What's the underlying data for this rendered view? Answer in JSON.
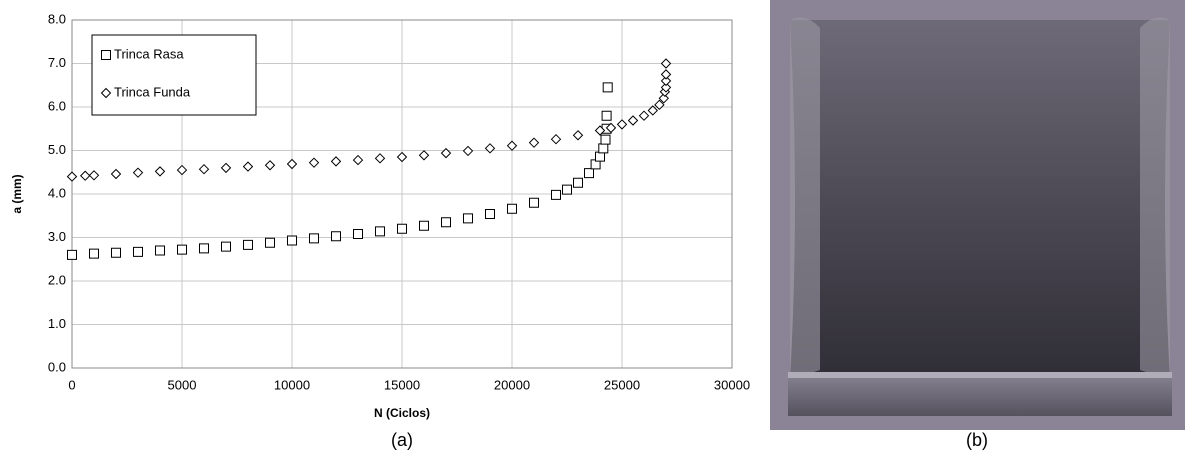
{
  "chart_data": {
    "type": "scatter",
    "xlabel": "N (Ciclos)",
    "ylabel": "a (mm)",
    "xlim": [
      0,
      30000
    ],
    "xticks": [
      0,
      5000,
      10000,
      15000,
      20000,
      25000,
      30000
    ],
    "ylim": [
      0,
      8
    ],
    "yticks": [
      {
        "value": 0,
        "label": "0.0"
      },
      {
        "value": 1,
        "label": "1.0"
      },
      {
        "value": 2,
        "label": "2.0"
      },
      {
        "value": 3,
        "label": "3.0"
      },
      {
        "value": 4,
        "label": "4.0"
      },
      {
        "value": 5,
        "label": "5.0"
      },
      {
        "value": 6,
        "label": "6.0"
      },
      {
        "value": 7,
        "label": "7.0"
      },
      {
        "value": 8,
        "label": "8.0"
      }
    ],
    "grid": true,
    "legend": "upper left",
    "series": [
      {
        "name": "Trinca Rasa",
        "color": "#000000",
        "marker": "square",
        "x": [
          0,
          1000,
          2000,
          3000,
          4000,
          5000,
          6000,
          7000,
          8000,
          9000,
          10000,
          11000,
          12000,
          13000,
          14000,
          15000,
          16000,
          17000,
          18000,
          19000,
          20000,
          21000,
          22000,
          22500,
          23000,
          23500,
          23800,
          24000,
          24150,
          24250,
          24300,
          24300,
          24350
        ],
        "values": [
          2.6,
          2.63,
          2.65,
          2.67,
          2.7,
          2.72,
          2.75,
          2.79,
          2.83,
          2.88,
          2.93,
          2.98,
          3.03,
          3.08,
          3.14,
          3.2,
          3.27,
          3.35,
          3.44,
          3.54,
          3.66,
          3.8,
          3.98,
          4.1,
          4.26,
          4.48,
          4.68,
          4.86,
          5.05,
          5.25,
          5.5,
          5.8,
          6.45
        ]
      },
      {
        "name": "Trinca Funda",
        "color": "#000000",
        "marker": "diamond",
        "x": [
          0,
          600,
          1000,
          2000,
          3000,
          4000,
          5000,
          6000,
          7000,
          8000,
          9000,
          10000,
          11000,
          12000,
          13000,
          14000,
          15000,
          16000,
          17000,
          18000,
          19000,
          20000,
          21000,
          22000,
          23000,
          24000,
          24500,
          25000,
          25500,
          26000,
          26400,
          26700,
          26900,
          26950,
          27000,
          27000,
          27000,
          27000
        ],
        "values": [
          4.4,
          4.42,
          4.43,
          4.46,
          4.49,
          4.52,
          4.55,
          4.57,
          4.6,
          4.63,
          4.66,
          4.69,
          4.72,
          4.75,
          4.78,
          4.82,
          4.85,
          4.89,
          4.94,
          4.99,
          5.05,
          5.11,
          5.18,
          5.26,
          5.35,
          5.46,
          5.52,
          5.6,
          5.69,
          5.8,
          5.92,
          6.05,
          6.2,
          6.35,
          6.45,
          6.6,
          6.75,
          7.0
        ]
      }
    ]
  },
  "panel_labels": {
    "a": "(a)",
    "b": "(b)"
  }
}
